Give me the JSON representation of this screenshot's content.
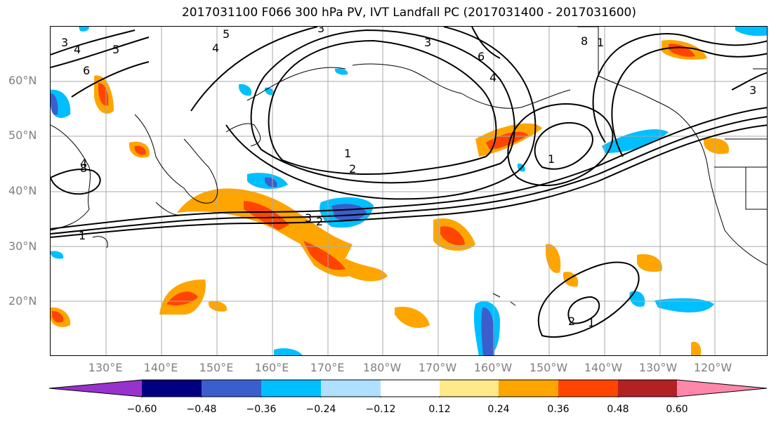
{
  "title": "2017031100 F066 300 hPa PV, IVT Landfall PC (2017031400 - 2017031600)",
  "map": {
    "lat_labels": [
      "60°N",
      "50°N",
      "40°N",
      "30°N",
      "20°N"
    ],
    "lon_labels": [
      "130°E",
      "140°E",
      "150°E",
      "160°E",
      "170°E",
      "180°W",
      "170°W",
      "160°W",
      "150°W",
      "140°W",
      "130°W",
      "120°W"
    ],
    "contour_labels": [
      "3",
      "4",
      "5",
      "6",
      "4",
      "5",
      "3",
      "3",
      "6",
      "4",
      "8",
      "1",
      "1",
      "2",
      "1",
      "3",
      "2",
      "1",
      "2",
      "1",
      "4",
      "8",
      "3"
    ]
  },
  "colorbar": {
    "ticks": [
      "−0.60",
      "−0.48",
      "−0.36",
      "−0.24",
      "−0.12",
      "0.12",
      "0.24",
      "0.36",
      "0.48",
      "0.60"
    ],
    "colors": [
      "#9932cc",
      "#000080",
      "#3a5fcd",
      "#00bfff",
      "#b0e0ff",
      "#ffffff",
      "#ffe98a",
      "#ffa500",
      "#ff4500",
      "#b22222",
      "#ff88aa"
    ]
  }
}
